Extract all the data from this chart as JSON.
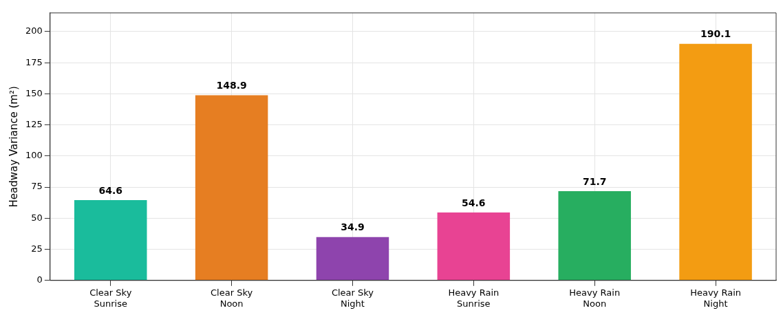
{
  "chart_data": {
    "type": "bar",
    "categories": [
      "Clear Sky\nSunrise",
      "Clear Sky\nNoon",
      "Clear Sky\nNight",
      "Heavy Rain\nSunrise",
      "Heavy Rain\nNoon",
      "Heavy Rain\nNight"
    ],
    "values": [
      64.6,
      148.9,
      34.9,
      54.6,
      71.7,
      190.1
    ],
    "colors": [
      "#1abc9c",
      "#e67e22",
      "#8e44ad",
      "#e84393",
      "#27ae60",
      "#f39c12"
    ],
    "ylabel": "Headway Variance (m²)",
    "ylim": [
      0,
      215
    ],
    "yticks": [
      0,
      25,
      50,
      75,
      100,
      125,
      150,
      175,
      200
    ],
    "grid": true,
    "data_labels": true
  }
}
